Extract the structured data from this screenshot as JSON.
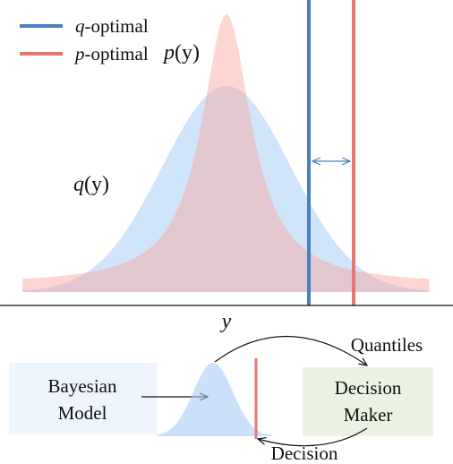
{
  "legend": [
    {
      "symbol": "q",
      "text": "-optimal"
    },
    {
      "symbol": "p",
      "text": "-optimal"
    }
  ],
  "plot": {
    "p_label": {
      "symbol": "p",
      "arg": "(y)"
    },
    "q_label": {
      "symbol": "q",
      "arg": "(y)"
    },
    "x_label": "y"
  },
  "pipeline": {
    "model": [
      "Bayesian",
      "Model"
    ],
    "decision_maker": [
      "Decision",
      "Maker"
    ],
    "quantiles": "Quantiles",
    "decision": "Decision"
  }
}
